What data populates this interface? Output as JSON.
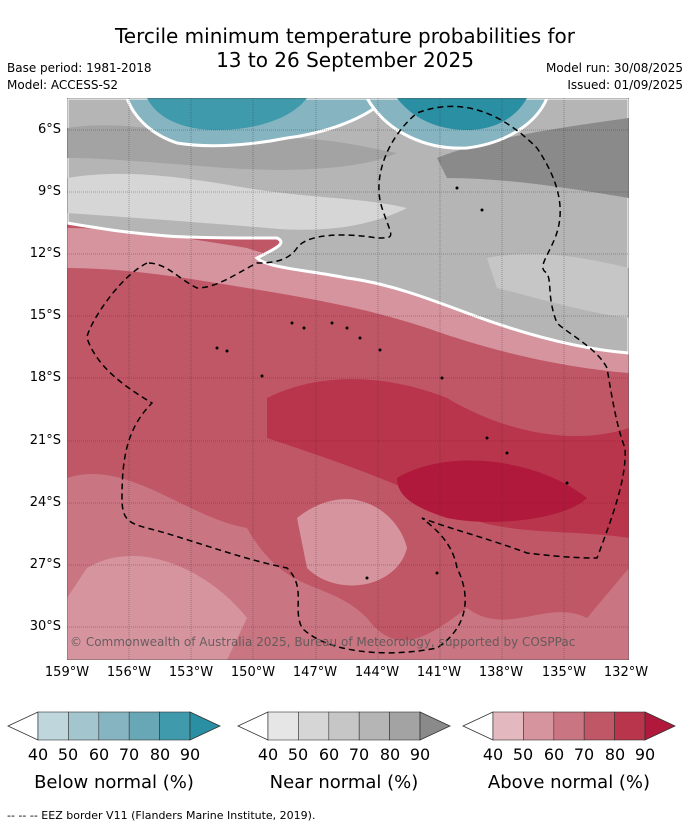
{
  "title_line1": "Tercile minimum temperature probabilities for",
  "title_line2": "13 to 26 September 2025",
  "meta": {
    "base_period": "Base period: 1981-2018",
    "model": "Model: ACCESS-S2",
    "model_run": "Model run: 30/08/2025",
    "issued": "Issued: 01/09/2025"
  },
  "map": {
    "lat_labels": [
      "6°S",
      "9°S",
      "12°S",
      "15°S",
      "18°S",
      "21°S",
      "24°S",
      "27°S",
      "30°S"
    ],
    "lon_labels": [
      "159°W",
      "156°W",
      "153°W",
      "150°W",
      "147°W",
      "144°W",
      "141°W",
      "138°W",
      "135°W",
      "132°W"
    ],
    "copyright": "© Commonwealth of Australia 2025, Bureau of Meteorology, supported by COSPPac",
    "region_categories": [
      "below_normal",
      "near_normal",
      "above_normal"
    ]
  },
  "legends": [
    {
      "title": "Below normal (%)",
      "ticks": [
        "40",
        "50",
        "60",
        "70",
        "80",
        "90"
      ],
      "colors": [
        "#ffffff",
        "#bfd6dd",
        "#a3c5ce",
        "#86b5c1",
        "#68a7b5",
        "#3f9aac",
        "#2a8fa3"
      ]
    },
    {
      "title": "Near normal (%)",
      "ticks": [
        "40",
        "50",
        "60",
        "70",
        "80",
        "90"
      ],
      "colors": [
        "#ffffff",
        "#e6e6e6",
        "#d6d6d6",
        "#c6c6c6",
        "#b5b5b5",
        "#a3a3a3",
        "#8a8a8a"
      ]
    },
    {
      "title": "Above normal (%)",
      "ticks": [
        "40",
        "50",
        "60",
        "70",
        "80",
        "90"
      ],
      "colors": [
        "#ffffff",
        "#e3b8be",
        "#d6949f",
        "#c97682",
        "#c05766",
        "#b8354b",
        "#b0193b"
      ]
    }
  ],
  "footer": "--  --  -- EEZ border V11 (Flanders Marine Institute, 2019)."
}
